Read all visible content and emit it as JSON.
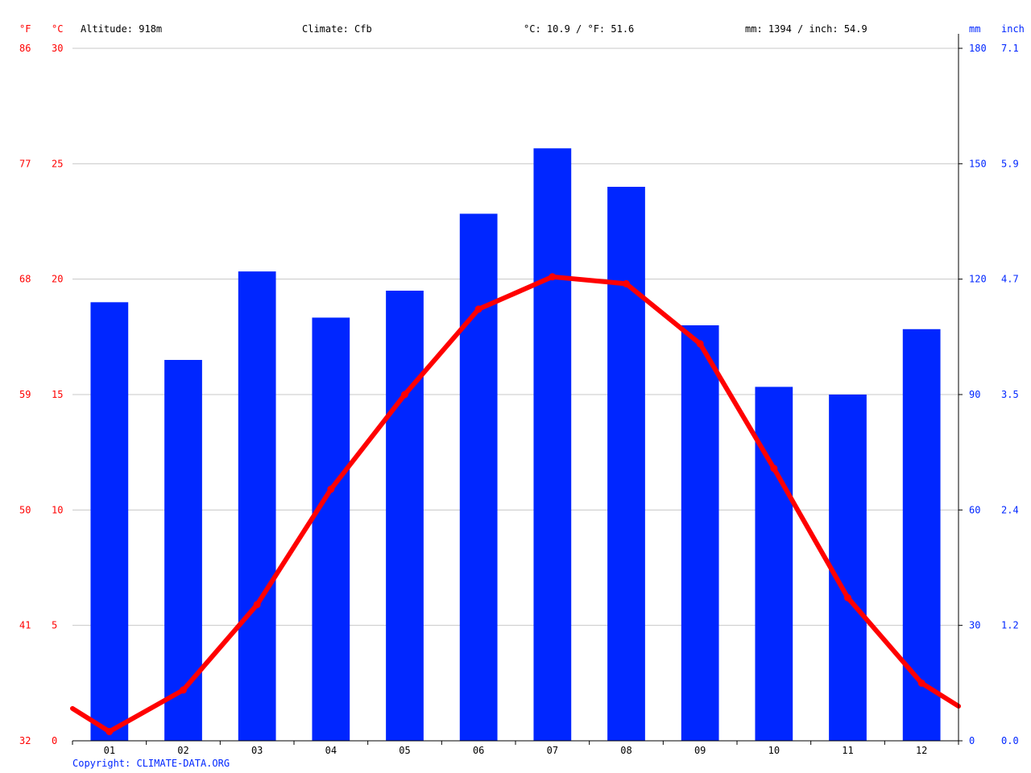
{
  "header": {
    "unit_f": "°F",
    "unit_c": "°C",
    "altitude": "Altitude: 918m",
    "climate": "Climate: Cfb",
    "temp_avg": "°C: 10.9 / °F: 51.6",
    "precip_total": "mm: 1394 / inch: 54.9",
    "unit_mm": "mm",
    "unit_inch": "inch"
  },
  "footer": {
    "copyright": "Copyright: CLIMATE-DATA.ORG"
  },
  "colors": {
    "temperature": "#ff0000",
    "precipitation": "#0026ff",
    "grid": "#c8c8c8",
    "axis": "#000000"
  },
  "chart_data": {
    "type": "bar",
    "categories": [
      "01",
      "02",
      "03",
      "04",
      "05",
      "06",
      "07",
      "08",
      "09",
      "10",
      "11",
      "12"
    ],
    "series": [
      {
        "type": "bar",
        "axis": "right",
        "unit": "mm",
        "values": [
          114,
          99,
          122,
          110,
          117,
          137,
          154,
          144,
          108,
          92,
          90,
          107
        ]
      },
      {
        "type": "line",
        "axis": "left",
        "unit": "°C",
        "values": [
          0.4,
          2.2,
          5.9,
          10.9,
          15.0,
          18.7,
          20.1,
          19.8,
          17.2,
          11.8,
          6.2,
          2.5
        ],
        "edge_start": 1.4,
        "edge_end": 1.5
      }
    ],
    "y_left": {
      "ylim": [
        0,
        30
      ],
      "ticks_c": [
        "0",
        "5",
        "10",
        "15",
        "20",
        "25",
        "30"
      ],
      "ticks_f": [
        "32",
        "41",
        "50",
        "59",
        "68",
        "77",
        "86"
      ]
    },
    "y_right": {
      "ylim": [
        0,
        180
      ],
      "ticks_mm": [
        "0",
        "30",
        "60",
        "90",
        "120",
        "150",
        "180"
      ],
      "ticks_inch": [
        "0.0",
        "1.2",
        "2.4",
        "3.5",
        "4.7",
        "5.9",
        "7.1"
      ]
    },
    "grid": true,
    "legend": "none"
  }
}
